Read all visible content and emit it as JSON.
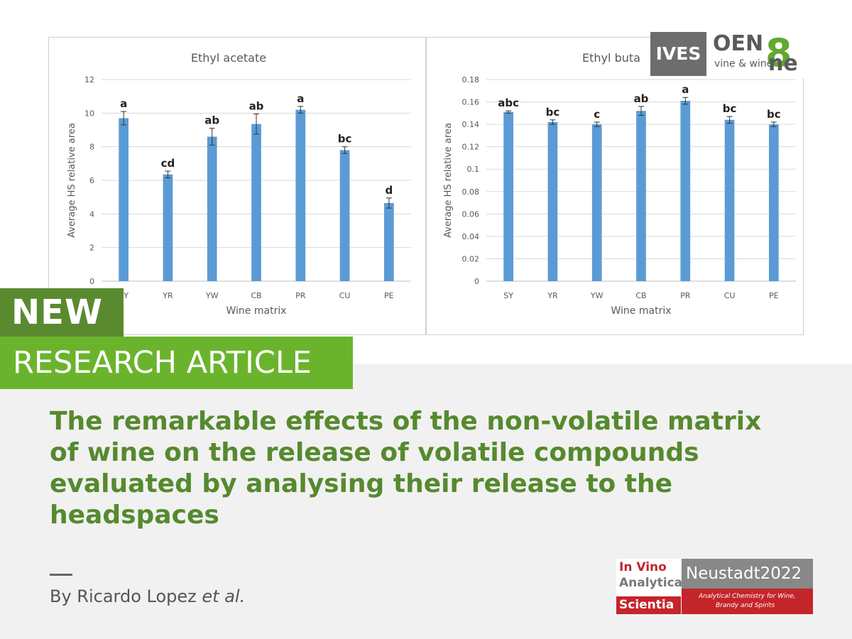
{
  "banner": {
    "new_label": "NEW",
    "article_label": "RESEARCH ARTICLE"
  },
  "article": {
    "title": "The remarkable effects of the non-volatile matrix of wine on the release of volatile compounds evaluated by analysing their release to the headspaces",
    "byline_prefix": "By Ricardo Lopez ",
    "byline_suffix": "et al."
  },
  "logos": {
    "ives": "IVES",
    "oeno_main": "OEN",
    "oeno_eight": "8",
    "oeno_one": "ne",
    "oeno_sub": "vine & wine"
  },
  "conference": {
    "line1": "In Vino",
    "line2": "Analytica",
    "line3": "Scientia",
    "title": "Neustadt2022",
    "sub1": "Analytical Chemistry for Wine,",
    "sub2": "Brandy and Spirits"
  },
  "colors": {
    "bar": "#5b9bd5",
    "green_dark": "#5a8a2f",
    "green_light": "#6ab42d",
    "title_green": "#568a2e",
    "conference_red": "#c4252b"
  },
  "chart_data": [
    {
      "type": "bar",
      "title": "Ethyl acetate",
      "xlabel": "Wine matrix",
      "ylabel": "Average HS relative area",
      "categories": [
        "SY",
        "YR",
        "YW",
        "CB",
        "PR",
        "CU",
        "PE"
      ],
      "values": [
        9.7,
        6.35,
        8.6,
        9.35,
        10.2,
        7.8,
        4.65
      ],
      "errors": [
        0.4,
        0.2,
        0.5,
        0.6,
        0.2,
        0.2,
        0.3
      ],
      "significance": [
        "a",
        "cd",
        "ab",
        "ab",
        "a",
        "bc",
        "d"
      ],
      "ylim": [
        0,
        12
      ],
      "yticks": [
        0,
        2,
        4,
        6,
        8,
        10,
        12
      ],
      "grid": true
    },
    {
      "type": "bar",
      "title": "Ethyl buta",
      "xlabel": "Wine matrix",
      "ylabel": "Average HS relative area",
      "categories": [
        "SY",
        "YR",
        "YW",
        "CB",
        "PR",
        "CU",
        "PE"
      ],
      "values": [
        0.151,
        0.142,
        0.14,
        0.152,
        0.161,
        0.144,
        0.14
      ],
      "errors": [
        0.001,
        0.002,
        0.002,
        0.004,
        0.003,
        0.003,
        0.002
      ],
      "significance": [
        "abc",
        "bc",
        "c",
        "ab",
        "a",
        "bc",
        "bc"
      ],
      "ylim": [
        0,
        0.18
      ],
      "yticks": [
        "0",
        "0.02",
        "0.04",
        "0.06",
        "0.08",
        "0.1",
        "0.12",
        "0.14",
        "0.16",
        "0.18"
      ],
      "grid": true
    }
  ]
}
